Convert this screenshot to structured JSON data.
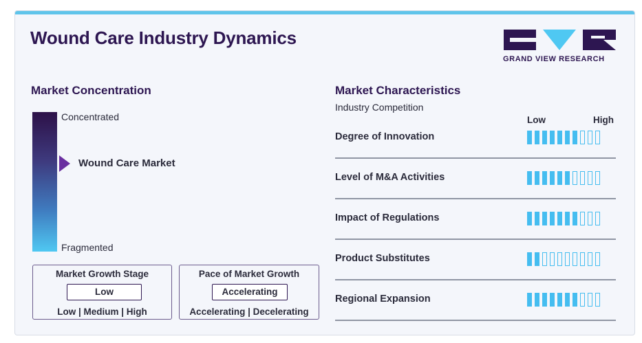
{
  "title": "Wound Care Industry Dynamics",
  "logo": {
    "text": "GRAND VIEW RESEARCH",
    "colors": {
      "dark": "#2d1651",
      "accent": "#4fc8f2"
    }
  },
  "concentration": {
    "heading": "Market Concentration",
    "top_label": "Concentrated",
    "bottom_label": "Fragmented",
    "marker_label": "Wound Care Market",
    "marker_level_from_top": 0.37,
    "gradient_colors": [
      "#2d1148",
      "#3e3a7e",
      "#3f7bbf",
      "#4fc8f2"
    ]
  },
  "growth_stage": {
    "title": "Market Growth Stage",
    "selected": "Low",
    "options": "Low  |  Medium  |  High"
  },
  "growth_pace": {
    "title": "Pace of Market Growth",
    "selected": "Accelerating",
    "options": "Accelerating  |  Decelerating"
  },
  "characteristics": {
    "heading": "Market Characteristics",
    "subheading": "Industry Competition",
    "scale_low": "Low",
    "scale_high": "High",
    "max_rating": 10,
    "filled_color": "#45bdf0",
    "items": [
      {
        "label": "Degree of Innovation",
        "rating": 7
      },
      {
        "label": "Level of M&A Activities",
        "rating": 6
      },
      {
        "label": "Impact of Regulations",
        "rating": 7
      },
      {
        "label": "Product Substitutes",
        "rating": 2
      },
      {
        "label": "Regional Expansion",
        "rating": 7
      }
    ]
  }
}
